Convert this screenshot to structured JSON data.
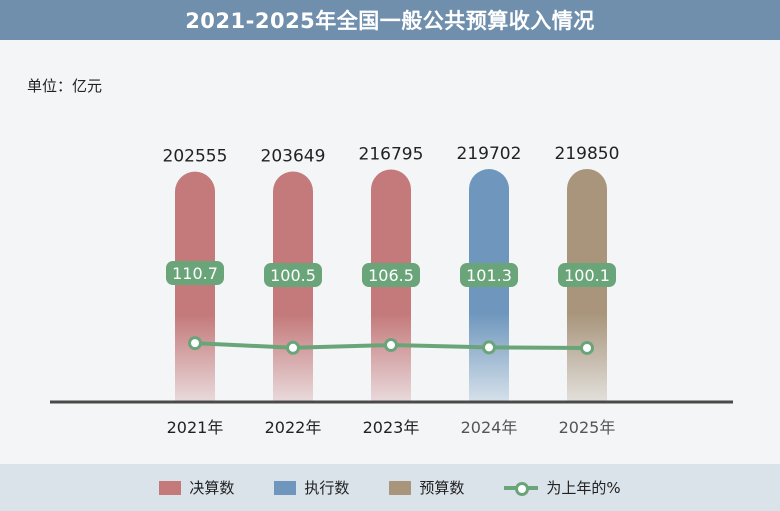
{
  "title": "2021-2025年全国一般公共预算收入情况",
  "unit_label": "单位：亿元",
  "colors": {
    "header": "#6f8fad",
    "final": "#c4797a",
    "execution": "#6f97bd",
    "budget": "#a8957b",
    "growth_line": "#6aa57a",
    "baseline": "#4a4a4a"
  },
  "chart_data": {
    "type": "bar",
    "categories": [
      "2021年",
      "2022年",
      "2023年",
      "2024年",
      "2025年"
    ],
    "values": [
      202555,
      203649,
      216795,
      219702,
      219850
    ],
    "bar_kinds": [
      "final",
      "final",
      "final",
      "execution",
      "budget"
    ],
    "value_labels": [
      "202555",
      "203649",
      "216795",
      "219702",
      "219850"
    ],
    "growth_pct": [
      110.7,
      100.5,
      106.5,
      101.3,
      100.1
    ],
    "growth_labels": [
      "110.7",
      "100.5",
      "106.5",
      "101.3",
      "100.1"
    ],
    "ylabel": "单位：亿元"
  },
  "legend": [
    {
      "key": "final",
      "label": "决算数"
    },
    {
      "key": "execution",
      "label": "执行数"
    },
    {
      "key": "budget",
      "label": "预算数"
    },
    {
      "key": "growth_line",
      "label": "为上年的%"
    }
  ]
}
